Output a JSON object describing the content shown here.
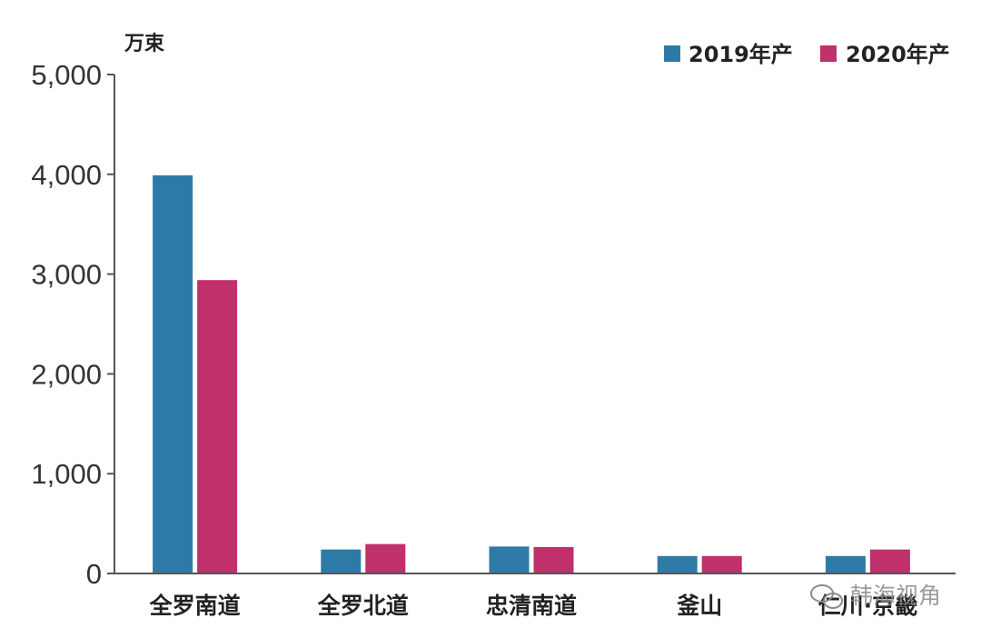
{
  "chart_data": {
    "type": "bar",
    "unit_label": "万束",
    "categories": [
      "全罗南道",
      "全罗北道",
      "忠清南道",
      "釜山",
      "仁川·京畿"
    ],
    "series": [
      {
        "name": "2019年产",
        "color": "#2e7aa6",
        "values": [
          3990,
          240,
          270,
          175,
          175
        ]
      },
      {
        "name": "2020年产",
        "color": "#c0306a",
        "values": [
          2940,
          295,
          265,
          175,
          240
        ]
      }
    ],
    "y_ticks": [
      "0",
      "1,000",
      "2,000",
      "3,000",
      "4,000",
      "5,000"
    ],
    "ylim": [
      0,
      5000
    ],
    "grid": false,
    "legend_position": "top-right"
  },
  "watermark": {
    "text": "韩海视角"
  }
}
